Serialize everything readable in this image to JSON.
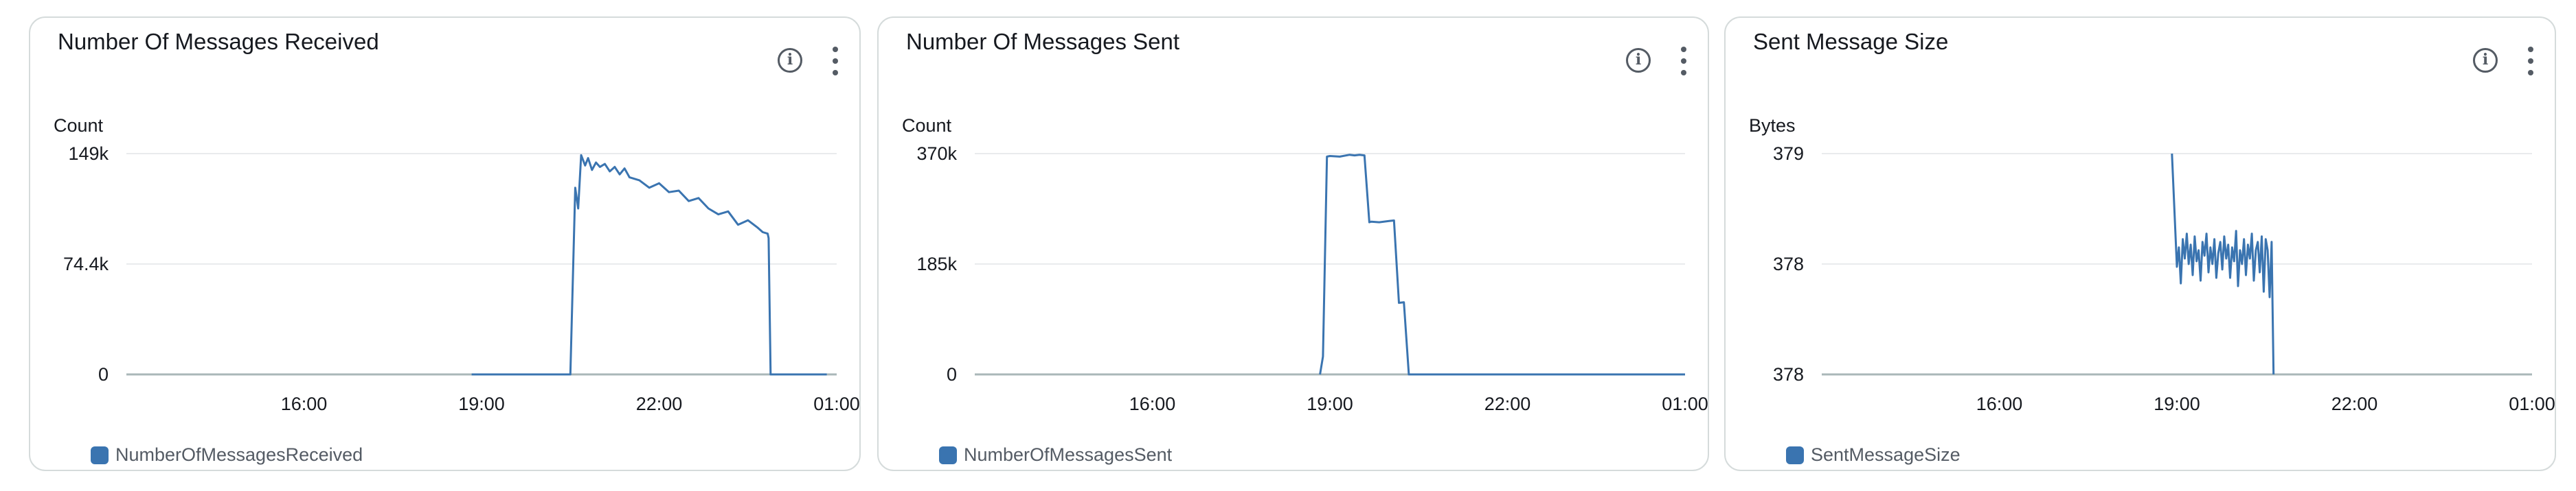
{
  "widgets": [
    {
      "title": "Number Of Messages Received",
      "ylabel": "Count",
      "legend": "NumberOfMessagesReceived",
      "color": "#3a74b0",
      "chart_data": {
        "type": "line",
        "title": "Number Of Messages Received",
        "ylabel": "Count",
        "xlabel": "",
        "x_ticks": [
          "16:00",
          "19:00",
          "22:00",
          "01:00"
        ],
        "y_ticks": [
          "0",
          "74.4k",
          "149k"
        ],
        "xlim_hours": [
          13.0,
          25.0
        ],
        "ylim": [
          0,
          149000
        ],
        "grid": true,
        "legend_position": "bottom-left",
        "series": [
          {
            "name": "NumberOfMessagesReceived",
            "x": [
              "18:50",
              "20:30",
              "20:35",
              "20:38",
              "20:41",
              "20:45",
              "20:48",
              "20:52",
              "20:56",
              "21:00",
              "21:05",
              "21:10",
              "21:15",
              "21:20",
              "21:25",
              "21:30",
              "21:40",
              "21:50",
              "22:00",
              "22:10",
              "22:20",
              "22:30",
              "22:40",
              "22:50",
              "23:00",
              "23:10",
              "23:20",
              "23:30",
              "23:40",
              "23:45",
              "23:50",
              "23:51",
              "23:53",
              "24:00",
              "24:50"
            ],
            "y": [
              0,
              0,
              126000,
              112000,
              148000,
              141000,
              146000,
              138000,
              143000,
              140000,
              142000,
              137000,
              140000,
              135000,
              139000,
              133000,
              131000,
              126000,
              129000,
              123000,
              124000,
              117000,
              119000,
              112000,
              108000,
              110000,
              101000,
              104000,
              99000,
              96000,
              95000,
              92000,
              0,
              0,
              0
            ]
          }
        ]
      }
    },
    {
      "title": "Number Of Messages Sent",
      "ylabel": "Count",
      "legend": "NumberOfMessagesSent",
      "color": "#3a74b0",
      "chart_data": {
        "type": "line",
        "title": "Number Of Messages Sent",
        "ylabel": "Count",
        "xlabel": "",
        "x_ticks": [
          "16:00",
          "19:00",
          "22:00",
          "01:00"
        ],
        "y_ticks": [
          "0",
          "185k",
          "370k"
        ],
        "xlim_hours": [
          13.0,
          25.0
        ],
        "ylim": [
          0,
          370000
        ],
        "grid": true,
        "legend_position": "bottom-left",
        "series": [
          {
            "name": "NumberOfMessagesSent",
            "x": [
              "18:50",
              "18:53",
              "18:57",
              "19:00",
              "19:10",
              "19:20",
              "19:25",
              "19:30",
              "19:35",
              "19:40",
              "19:42",
              "19:50",
              "20:00",
              "20:05",
              "20:10",
              "20:15",
              "20:20",
              "20:25",
              "25:00"
            ],
            "y": [
              0,
              30000,
              365000,
              366000,
              365000,
              368000,
              367000,
              368000,
              367000,
              255000,
              256000,
              255000,
              257000,
              258000,
              120000,
              121000,
              0,
              0,
              0
            ]
          }
        ]
      }
    },
    {
      "title": "Sent Message Size",
      "ylabel": "Bytes",
      "legend": "SentMessageSize",
      "color": "#3a74b0",
      "chart_data": {
        "type": "line",
        "title": "Sent Message Size",
        "ylabel": "Bytes",
        "xlabel": "",
        "x_ticks": [
          "16:00",
          "19:00",
          "22:00",
          "01:00"
        ],
        "y_ticks": [
          "378",
          "378",
          "379"
        ],
        "xlim_hours": [
          13.0,
          25.0
        ],
        "ylim": [
          377.6,
          378.4
        ],
        "grid": true,
        "legend_position": "bottom-left",
        "series": [
          {
            "name": "SentMessageSize",
            "x": [
              "18:55",
              "19:00",
              "19:02",
              "19:04",
              "19:06",
              "19:08",
              "19:10",
              "19:12",
              "19:14",
              "19:16",
              "19:18",
              "19:20",
              "19:22",
              "19:24",
              "19:26",
              "19:28",
              "19:30",
              "19:32",
              "19:34",
              "19:36",
              "19:38",
              "19:40",
              "19:42",
              "19:44",
              "19:46",
              "19:48",
              "19:50",
              "19:52",
              "19:54",
              "19:56",
              "19:58",
              "20:00",
              "20:02",
              "20:04",
              "20:06",
              "20:08",
              "20:10",
              "20:12",
              "20:14",
              "20:16",
              "20:18",
              "20:20",
              "20:22",
              "20:24",
              "20:26",
              "20:28",
              "20:30",
              "20:32",
              "20:34",
              "20:36",
              "20:38"
            ],
            "y": [
              378.4,
              377.99,
              378.06,
              377.93,
              378.09,
              378.02,
              378.11,
              378.0,
              378.07,
              377.96,
              378.1,
              378.01,
              378.05,
              377.94,
              378.08,
              378.03,
              378.11,
              377.97,
              378.06,
              378.0,
              378.09,
              377.95,
              378.04,
              378.08,
              377.98,
              378.1,
              378.02,
              378.07,
              377.95,
              378.06,
              378.01,
              378.12,
              377.92,
              378.05,
              378.0,
              378.09,
              377.96,
              378.07,
              378.02,
              378.11,
              377.94,
              378.05,
              378.08,
              377.97,
              378.1,
              377.9,
              378.09,
              378.05,
              377.88,
              378.08,
              377.6
            ]
          }
        ]
      }
    }
  ]
}
